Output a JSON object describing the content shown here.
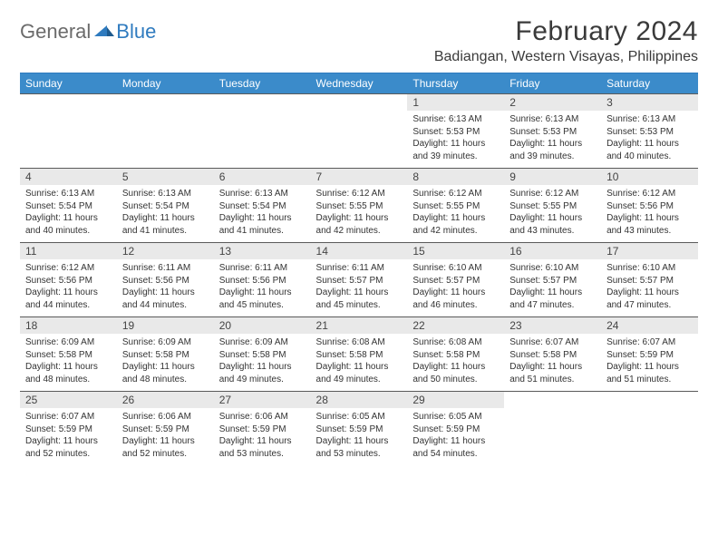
{
  "brand": {
    "part1": "General",
    "part2": "Blue"
  },
  "title": "February 2024",
  "location": "Badiangan, Western Visayas, Philippines",
  "colors": {
    "header_bg": "#3b8bca",
    "header_text": "#ffffff",
    "daynum_bg": "#e9e9e9",
    "border": "#5a5a5a",
    "logo_gray": "#6b6b6b",
    "logo_blue": "#2f7bbf"
  },
  "weekdays": [
    "Sunday",
    "Monday",
    "Tuesday",
    "Wednesday",
    "Thursday",
    "Friday",
    "Saturday"
  ],
  "first_weekday_index": 4,
  "days": [
    {
      "n": 1,
      "sunrise": "6:13 AM",
      "sunset": "5:53 PM",
      "daylight": "11 hours and 39 minutes."
    },
    {
      "n": 2,
      "sunrise": "6:13 AM",
      "sunset": "5:53 PM",
      "daylight": "11 hours and 39 minutes."
    },
    {
      "n": 3,
      "sunrise": "6:13 AM",
      "sunset": "5:53 PM",
      "daylight": "11 hours and 40 minutes."
    },
    {
      "n": 4,
      "sunrise": "6:13 AM",
      "sunset": "5:54 PM",
      "daylight": "11 hours and 40 minutes."
    },
    {
      "n": 5,
      "sunrise": "6:13 AM",
      "sunset": "5:54 PM",
      "daylight": "11 hours and 41 minutes."
    },
    {
      "n": 6,
      "sunrise": "6:13 AM",
      "sunset": "5:54 PM",
      "daylight": "11 hours and 41 minutes."
    },
    {
      "n": 7,
      "sunrise": "6:12 AM",
      "sunset": "5:55 PM",
      "daylight": "11 hours and 42 minutes."
    },
    {
      "n": 8,
      "sunrise": "6:12 AM",
      "sunset": "5:55 PM",
      "daylight": "11 hours and 42 minutes."
    },
    {
      "n": 9,
      "sunrise": "6:12 AM",
      "sunset": "5:55 PM",
      "daylight": "11 hours and 43 minutes."
    },
    {
      "n": 10,
      "sunrise": "6:12 AM",
      "sunset": "5:56 PM",
      "daylight": "11 hours and 43 minutes."
    },
    {
      "n": 11,
      "sunrise": "6:12 AM",
      "sunset": "5:56 PM",
      "daylight": "11 hours and 44 minutes."
    },
    {
      "n": 12,
      "sunrise": "6:11 AM",
      "sunset": "5:56 PM",
      "daylight": "11 hours and 44 minutes."
    },
    {
      "n": 13,
      "sunrise": "6:11 AM",
      "sunset": "5:56 PM",
      "daylight": "11 hours and 45 minutes."
    },
    {
      "n": 14,
      "sunrise": "6:11 AM",
      "sunset": "5:57 PM",
      "daylight": "11 hours and 45 minutes."
    },
    {
      "n": 15,
      "sunrise": "6:10 AM",
      "sunset": "5:57 PM",
      "daylight": "11 hours and 46 minutes."
    },
    {
      "n": 16,
      "sunrise": "6:10 AM",
      "sunset": "5:57 PM",
      "daylight": "11 hours and 47 minutes."
    },
    {
      "n": 17,
      "sunrise": "6:10 AM",
      "sunset": "5:57 PM",
      "daylight": "11 hours and 47 minutes."
    },
    {
      "n": 18,
      "sunrise": "6:09 AM",
      "sunset": "5:58 PM",
      "daylight": "11 hours and 48 minutes."
    },
    {
      "n": 19,
      "sunrise": "6:09 AM",
      "sunset": "5:58 PM",
      "daylight": "11 hours and 48 minutes."
    },
    {
      "n": 20,
      "sunrise": "6:09 AM",
      "sunset": "5:58 PM",
      "daylight": "11 hours and 49 minutes."
    },
    {
      "n": 21,
      "sunrise": "6:08 AM",
      "sunset": "5:58 PM",
      "daylight": "11 hours and 49 minutes."
    },
    {
      "n": 22,
      "sunrise": "6:08 AM",
      "sunset": "5:58 PM",
      "daylight": "11 hours and 50 minutes."
    },
    {
      "n": 23,
      "sunrise": "6:07 AM",
      "sunset": "5:58 PM",
      "daylight": "11 hours and 51 minutes."
    },
    {
      "n": 24,
      "sunrise": "6:07 AM",
      "sunset": "5:59 PM",
      "daylight": "11 hours and 51 minutes."
    },
    {
      "n": 25,
      "sunrise": "6:07 AM",
      "sunset": "5:59 PM",
      "daylight": "11 hours and 52 minutes."
    },
    {
      "n": 26,
      "sunrise": "6:06 AM",
      "sunset": "5:59 PM",
      "daylight": "11 hours and 52 minutes."
    },
    {
      "n": 27,
      "sunrise": "6:06 AM",
      "sunset": "5:59 PM",
      "daylight": "11 hours and 53 minutes."
    },
    {
      "n": 28,
      "sunrise": "6:05 AM",
      "sunset": "5:59 PM",
      "daylight": "11 hours and 53 minutes."
    },
    {
      "n": 29,
      "sunrise": "6:05 AM",
      "sunset": "5:59 PM",
      "daylight": "11 hours and 54 minutes."
    }
  ],
  "labels": {
    "sunrise": "Sunrise:",
    "sunset": "Sunset:",
    "daylight": "Daylight:"
  }
}
